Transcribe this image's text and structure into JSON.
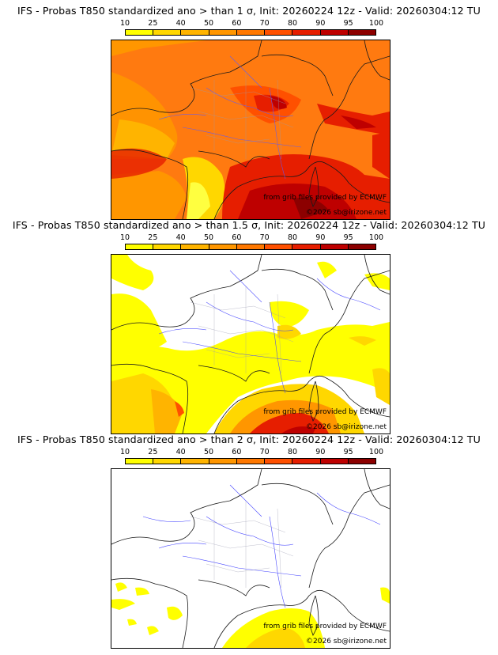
{
  "panels": [
    {
      "title": "IFS - Probas T850  standardized ano > than 1 σ, Init: 20260224 12z - Valid: 20260304:12 TU",
      "threshold": "1 σ"
    },
    {
      "title": "IFS - Probas T850  standardized ano > than 1.5 σ, Init: 20260224 12z - Valid: 20260304:12 TU",
      "threshold": "1.5 σ"
    },
    {
      "title": "IFS - Probas T850  standardized ano > than 2 σ, Init: 20260224 12z - Valid: 20260304:12 TU",
      "threshold": "2 σ"
    }
  ],
  "colorbar": {
    "ticks": [
      "10",
      "25",
      "40",
      "50",
      "60",
      "70",
      "80",
      "90",
      "95",
      "100"
    ],
    "colors": [
      "#ffff00",
      "#ffd700",
      "#ffb400",
      "#ff9600",
      "#ff7800",
      "#ff5000",
      "#e61e00",
      "#be0000",
      "#8c0000"
    ]
  },
  "credits": {
    "source": "from grib files provided by ECMWF",
    "copyright": "©2026 sb@irizone.net"
  }
}
